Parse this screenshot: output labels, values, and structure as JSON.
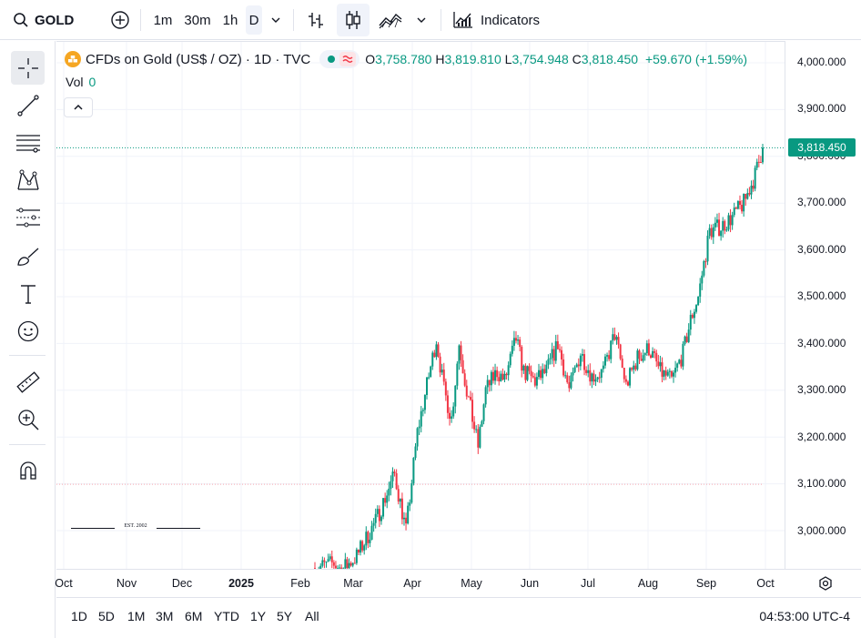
{
  "toolbar": {
    "symbol": "GOLD",
    "intervals": [
      "1m",
      "30m",
      "1h",
      "D"
    ],
    "active_interval": "D",
    "indicators_label": "Indicators"
  },
  "legend": {
    "title": "CFDs on Gold (US$ / OZ) · 1D · TVC",
    "o_label": "O",
    "o_value": "3,758.780",
    "h_label": "H",
    "h_value": "3,819.810",
    "l_label": "L",
    "l_value": "3,754.948",
    "c_label": "C",
    "c_value": "3,818.450",
    "change": "+59.670 (+1.59%)",
    "vol_label": "Vol",
    "vol_value": "0"
  },
  "price_axis": {
    "ticks": [
      "4,000.000",
      "3,900.000",
      "3,800.000",
      "3,700.000",
      "3,600.000",
      "3,500.000",
      "3,400.000",
      "3,300.000",
      "3,200.000",
      "3,100.000",
      "3,000.000"
    ],
    "last_price": "3,818.450"
  },
  "time_axis": {
    "labels": [
      "Oct",
      "Nov",
      "Dec",
      "2025",
      "Feb",
      "Mar",
      "Apr",
      "May",
      "Jun",
      "Jul",
      "Aug",
      "Sep",
      "Oct"
    ]
  },
  "watermark": {
    "text": "EST. 2002"
  },
  "bottombar": {
    "ranges": [
      "1D",
      "5D",
      "1M",
      "3M",
      "6M",
      "YTD",
      "1Y",
      "5Y",
      "All"
    ],
    "clock": "04:53:00 UTC-4"
  },
  "colors": {
    "up": "#089981",
    "down": "#f23645",
    "grid": "#f0f3fa",
    "last_price_line": "#089981"
  },
  "chart_data": {
    "type": "candlestick",
    "ylim": [
      2940,
      4030
    ],
    "x_labels": [
      "Oct",
      "Nov",
      "Dec",
      "2025",
      "Feb",
      "Mar",
      "Apr",
      "May",
      "Jun",
      "Jul",
      "Aug",
      "Sep",
      "Oct"
    ],
    "anchors": [
      [
        0,
        2920
      ],
      [
        10,
        2930
      ],
      [
        14,
        2915
      ],
      [
        22,
        2945
      ],
      [
        32,
        3020
      ],
      [
        42,
        3120
      ],
      [
        48,
        3000
      ],
      [
        54,
        3210
      ],
      [
        58,
        3290
      ],
      [
        64,
        3410
      ],
      [
        68,
        3300
      ],
      [
        72,
        3240
      ],
      [
        76,
        3400
      ],
      [
        80,
        3300
      ],
      [
        86,
        3180
      ],
      [
        90,
        3300
      ],
      [
        96,
        3340
      ],
      [
        100,
        3320
      ],
      [
        106,
        3410
      ],
      [
        110,
        3340
      ],
      [
        116,
        3320
      ],
      [
        122,
        3340
      ],
      [
        128,
        3400
      ],
      [
        134,
        3300
      ],
      [
        140,
        3380
      ],
      [
        146,
        3330
      ],
      [
        152,
        3340
      ],
      [
        158,
        3420
      ],
      [
        164,
        3310
      ],
      [
        170,
        3370
      ],
      [
        176,
        3390
      ],
      [
        182,
        3340
      ],
      [
        188,
        3320
      ],
      [
        194,
        3380
      ],
      [
        198,
        3450
      ],
      [
        202,
        3500
      ],
      [
        208,
        3640
      ],
      [
        214,
        3650
      ],
      [
        220,
        3670
      ],
      [
        226,
        3700
      ],
      [
        232,
        3760
      ],
      [
        236,
        3818.45
      ]
    ]
  }
}
